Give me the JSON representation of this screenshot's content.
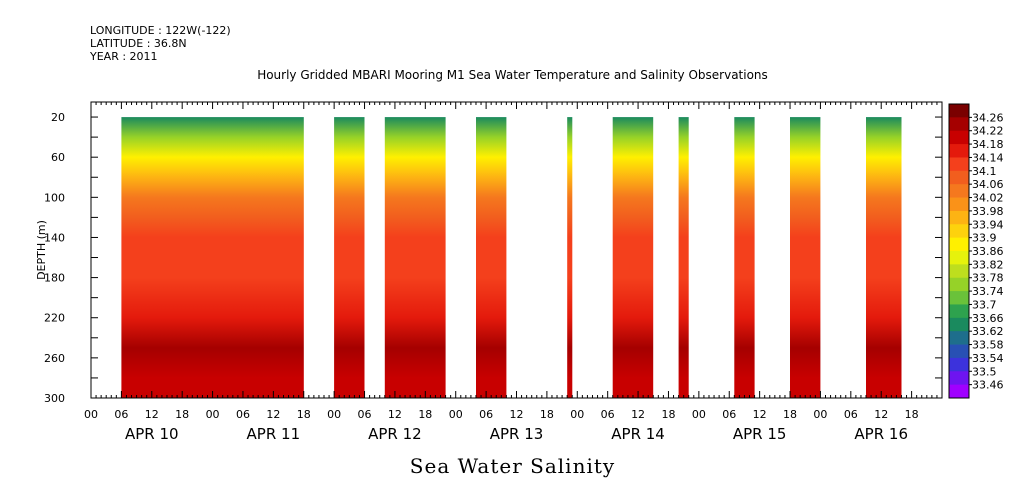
{
  "header": {
    "longitude": "LONGITUDE : 122W(-122)",
    "latitude": "LATITUDE : 36.8N",
    "year": "YEAR : 2011"
  },
  "title": "Hourly Gridded MBARI Mooring M1 Sea Water Temperature and Salinity Observations",
  "variable_title": "Sea Water Salinity",
  "chart_data": {
    "type": "heatmap",
    "title": "Hourly Gridded MBARI Mooring M1 Sea Water Temperature and Salinity Observations",
    "variable": "Sea Water Salinity",
    "ylabel": "DEPTH (m)",
    "ylim": [
      300,
      5
    ],
    "y_reversed": true,
    "y_ticks": [
      20,
      60,
      100,
      140,
      180,
      220,
      260,
      300
    ],
    "xlim_hours": [
      0,
      168
    ],
    "x_tick_labels": [
      "00",
      "06",
      "12",
      "18",
      "00",
      "06",
      "12",
      "18",
      "00",
      "06",
      "12",
      "18",
      "00",
      "06",
      "12",
      "18",
      "00",
      "06",
      "12",
      "18",
      "00",
      "06",
      "12",
      "18",
      "00",
      "06",
      "12",
      "18"
    ],
    "x_day_labels": [
      "APR 10",
      "APR 11",
      "APR 12",
      "APR 13",
      "APR 14",
      "APR 15",
      "APR 16"
    ],
    "data_segments_hours": [
      [
        6,
        42
      ],
      [
        48,
        54
      ],
      [
        58,
        70
      ],
      [
        76,
        82
      ],
      [
        94,
        95
      ],
      [
        103,
        111
      ],
      [
        116,
        118
      ],
      [
        127,
        131
      ],
      [
        138,
        144
      ],
      [
        153,
        160
      ]
    ],
    "color_scale": {
      "labels": [
        "34.26",
        "34.22",
        "34.18",
        "34.14",
        "34.1",
        "34.06",
        "34.02",
        "33.98",
        "33.94",
        "33.9",
        "33.86",
        "33.82",
        "33.78",
        "33.74",
        "33.7",
        "33.66",
        "33.62",
        "33.58",
        "33.54",
        "33.5",
        "33.46"
      ],
      "colors": [
        "#7a0000",
        "#a50000",
        "#c80000",
        "#e41a0c",
        "#f4401c",
        "#f25e1e",
        "#f5781e",
        "#fa9218",
        "#fdb313",
        "#fdd20d",
        "#fff000",
        "#e6f20c",
        "#bede1e",
        "#96d228",
        "#6ac23a",
        "#2ea24e",
        "#1a8a5e",
        "#1e6e8c",
        "#2850b4",
        "#3c32dc",
        "#6e14f0",
        "#a000ff"
      ]
    },
    "profile": [
      {
        "depth": 20,
        "value": 33.64
      },
      {
        "depth": 40,
        "value": 33.76
      },
      {
        "depth": 60,
        "value": 33.86
      },
      {
        "depth": 80,
        "value": 33.98
      },
      {
        "depth": 100,
        "value": 34.02
      },
      {
        "depth": 120,
        "value": 34.06
      },
      {
        "depth": 140,
        "value": 34.1
      },
      {
        "depth": 180,
        "value": 34.12
      },
      {
        "depth": 220,
        "value": 34.16
      },
      {
        "depth": 250,
        "value": 34.24
      },
      {
        "depth": 280,
        "value": 34.2
      },
      {
        "depth": 300,
        "value": 34.18
      }
    ]
  }
}
